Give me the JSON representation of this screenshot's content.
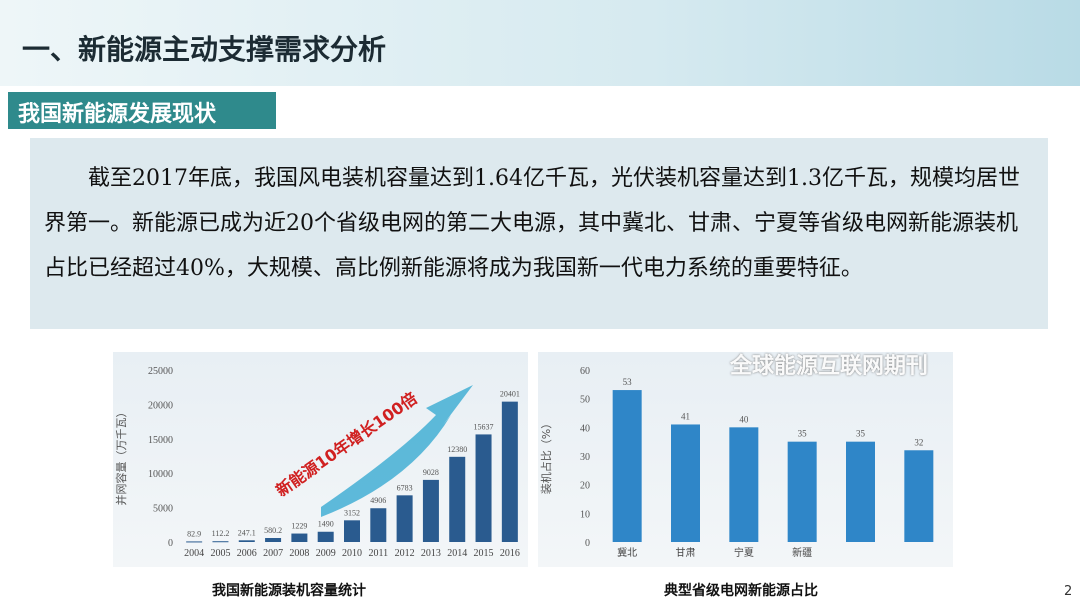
{
  "title": "一、新能源主动支撑需求分析",
  "subtitle": "我国新能源发展现状",
  "paragraph": "截至2017年底，我国风电装机容量达到1.64亿千瓦，光伏装机容量达到1.3亿千瓦，规模均居世界第一。新能源已成为近20个省级电网的第二大电源，其中冀北、甘肃、宁夏等省级电网新能源装机占比已经超过40%，大规模、高比例新能源将成为我国新一代电力系统的重要特征。",
  "page_number": "2",
  "watermark": "全球能源互联网期刊",
  "chart_data": [
    {
      "type": "bar",
      "title": "我国新能源装机容量统计",
      "ylabel": "并网容量（万千瓦）",
      "annotation": "新能源10年增长100倍",
      "ylim": [
        0,
        25000
      ],
      "yticks": [
        0,
        5000,
        10000,
        15000,
        20000,
        25000
      ],
      "categories": [
        "2004",
        "2005",
        "2006",
        "2007",
        "2008",
        "2009",
        "2010",
        "2011",
        "2012",
        "2013",
        "2014",
        "2015",
        "2016"
      ],
      "values": [
        82.9,
        112.2,
        247.1,
        580.2,
        1229,
        1490,
        3152,
        4906,
        6783,
        9028,
        12380,
        15637,
        20401
      ],
      "labels": [
        "82.9",
        "112.2",
        "247.1",
        "580.2",
        "1229",
        "1490",
        "3152",
        "4906",
        "6783",
        "9028",
        "12380",
        "15637",
        "20401"
      ],
      "color": "#2a5b8f"
    },
    {
      "type": "bar",
      "title": "典型省级电网新能源占比",
      "ylabel": "装机占比（%）",
      "ylim": [
        0,
        60
      ],
      "yticks": [
        0,
        10,
        20,
        30,
        40,
        50,
        60
      ],
      "categories": [
        "冀北",
        "甘肃",
        "宁夏",
        "新疆",
        "",
        ""
      ],
      "values": [
        53,
        41,
        40,
        35,
        35,
        32
      ],
      "labels": [
        "53",
        "41",
        "40",
        "35",
        "35",
        "32"
      ],
      "color": "#2f86c8"
    }
  ]
}
